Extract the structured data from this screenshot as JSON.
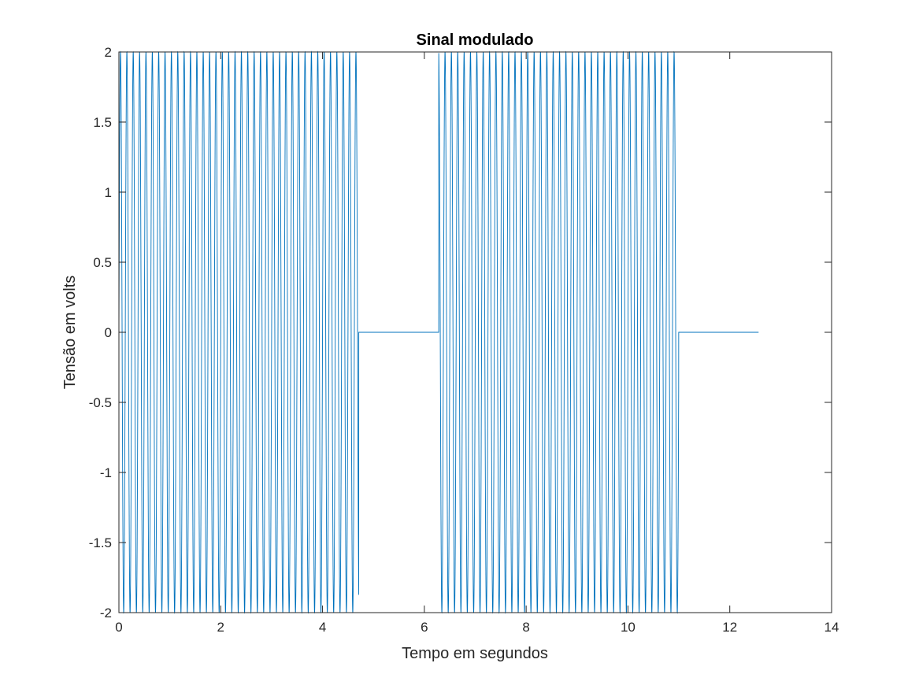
{
  "chart_data": {
    "type": "line",
    "title": "Sinal modulado",
    "xlabel": "Tempo em segundos",
    "ylabel": "Tensão em volts",
    "xlim": [
      0,
      14
    ],
    "ylim": [
      -2,
      2
    ],
    "xticks": [
      0,
      2,
      4,
      6,
      8,
      10,
      12,
      14
    ],
    "yticks": [
      -2,
      -1.5,
      -1,
      -0.5,
      0,
      0.5,
      1,
      1.5,
      2
    ],
    "xtick_labels": [
      "0",
      "2",
      "4",
      "6",
      "8",
      "10",
      "12",
      "14"
    ],
    "ytick_labels": [
      "-2",
      "-1.5",
      "-1",
      "-0.5",
      "0",
      "0.5",
      "1",
      "1.5",
      "2"
    ],
    "grid": false,
    "box": true,
    "series": [
      {
        "color": "#0072BD",
        "carrier_frequency_hz": 8,
        "amplitude": 2,
        "x_end": 12.566,
        "on_intervals": [
          [
            0,
            4.712
          ],
          [
            6.283,
            10.996
          ]
        ],
        "off_value": 0
      }
    ]
  }
}
